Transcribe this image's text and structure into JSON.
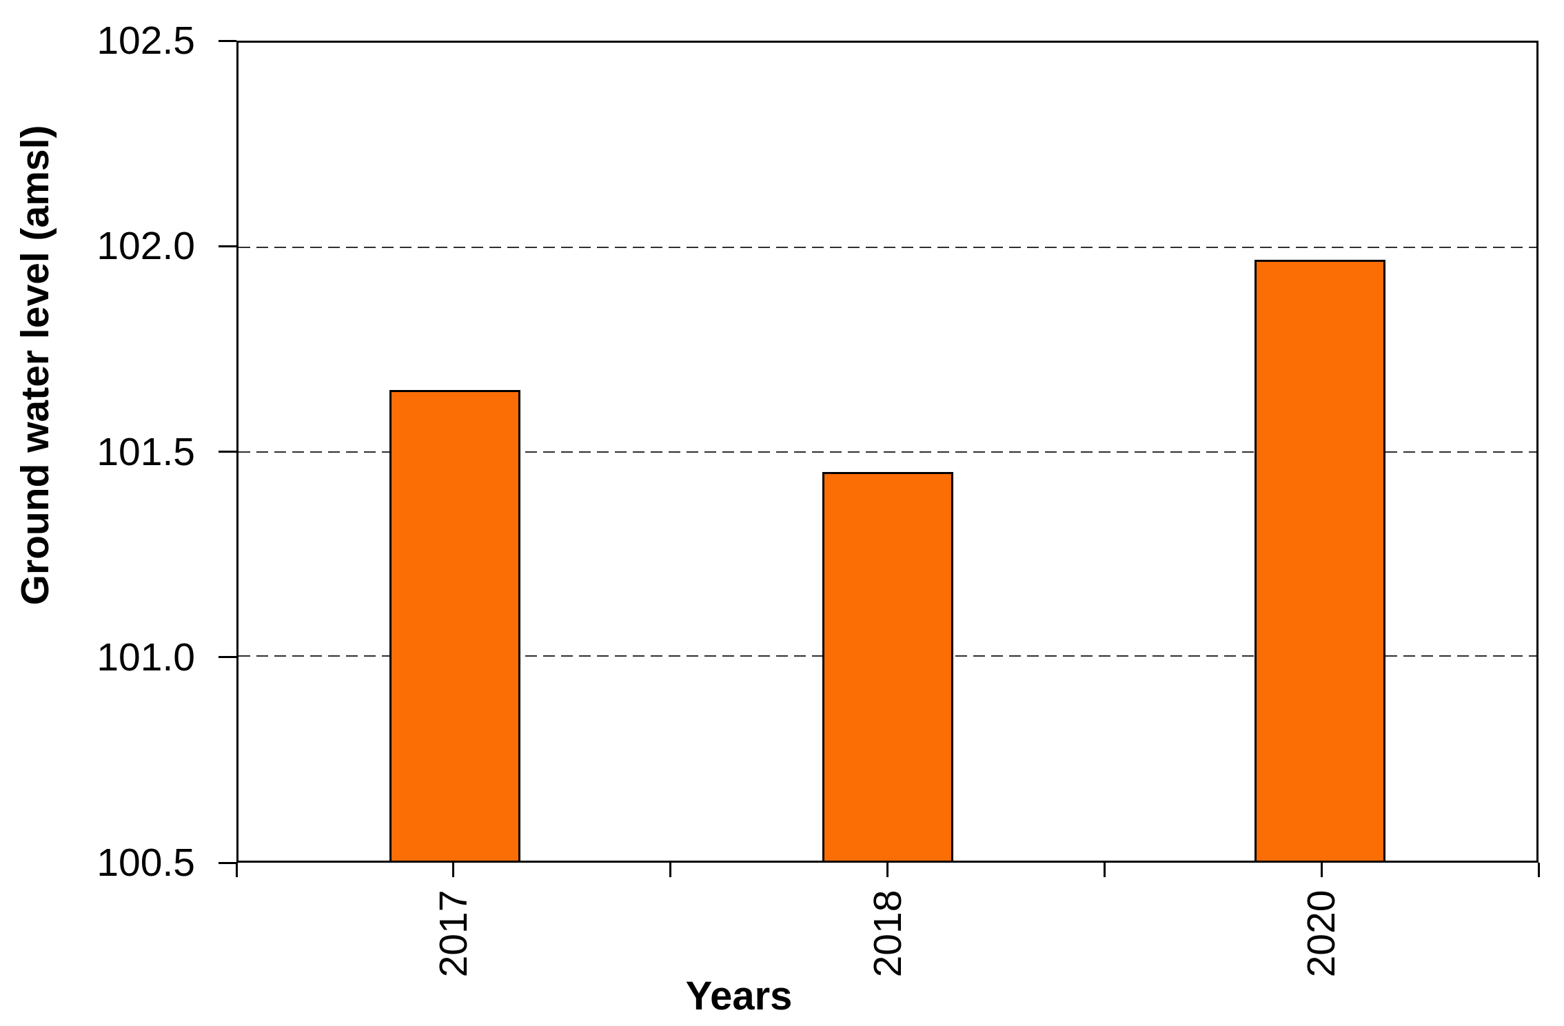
{
  "figure": {
    "background": "#ffffff"
  },
  "chart_data": {
    "type": "bar",
    "title": "",
    "categories": [
      "2017",
      "2018",
      "2020"
    ],
    "values": [
      101.65,
      101.45,
      101.97
    ],
    "xlabel": "Years",
    "ylabel": "Ground water level (amsl)",
    "ylim": [
      100.5,
      102.5
    ],
    "ytick_values": [
      102.5,
      102.0,
      101.5,
      101.0,
      100.5
    ],
    "ytick_labels": [
      "102.5",
      "102.0",
      "101.5",
      "101.0",
      "100.5"
    ],
    "gridline_values": [
      102.0,
      101.5,
      101.0
    ],
    "grid_style": "dashed-horizontal",
    "legend": null,
    "bar_color": "#FB6D05",
    "bar_border_color": "#000000",
    "axis_color": "#000000",
    "gridline_color": "#2e2e2e",
    "text_color": "#000000",
    "x_labels_rotation_deg": -90
  }
}
